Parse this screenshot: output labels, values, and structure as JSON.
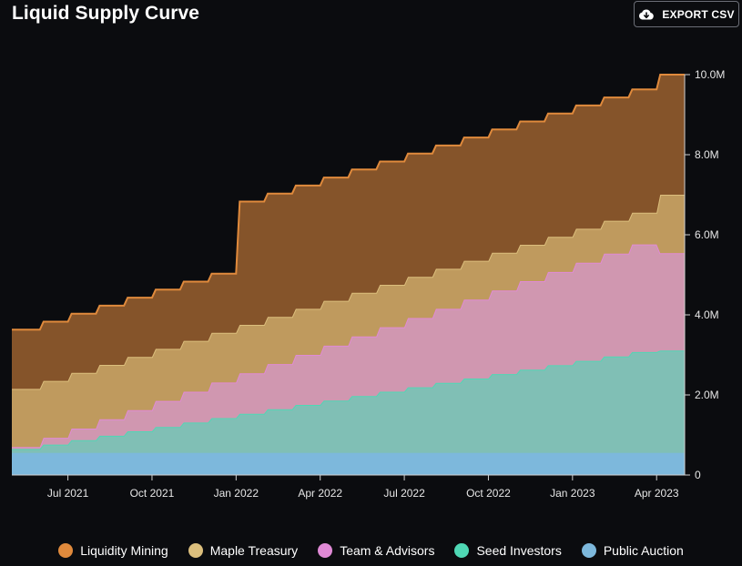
{
  "header": {
    "title": "Liquid Supply Curve",
    "export_label": "EXPORT CSV",
    "export_icon": "cloud-download-icon"
  },
  "chart_data": {
    "type": "area",
    "stacked": true,
    "title": "Liquid Supply Curve",
    "x_start": "2021-05",
    "x_end": "2023-04",
    "x_ticks": [
      "Jul 2021",
      "Oct 2021",
      "Jan 2022",
      "Apr 2022",
      "Jul 2022",
      "Oct 2022",
      "Jan 2023",
      "Apr 2023"
    ],
    "y_ticks": [
      "0",
      "2.0M",
      "4.0M",
      "6.0M",
      "8.0M",
      "10.0M"
    ],
    "ylim": [
      0,
      10000000
    ],
    "y_axis_side": "right",
    "grid": false,
    "legend_position": "bottom",
    "x": [
      "2021-05",
      "2021-06",
      "2021-07",
      "2021-08",
      "2021-09",
      "2021-10",
      "2021-11",
      "2021-12",
      "2022-01",
      "2022-02",
      "2022-03",
      "2022-04",
      "2022-05",
      "2022-06",
      "2022-07",
      "2022-08",
      "2022-09",
      "2022-10",
      "2022-11",
      "2022-12",
      "2023-01",
      "2023-02",
      "2023-03",
      "2023-04"
    ],
    "series": [
      {
        "name": "Public Auction",
        "color": "#7db8dc",
        "fill": "#7db8dc",
        "values": [
          550000,
          550000,
          550000,
          550000,
          550000,
          550000,
          550000,
          550000,
          550000,
          550000,
          550000,
          550000,
          550000,
          550000,
          550000,
          550000,
          550000,
          550000,
          550000,
          550000,
          550000,
          550000,
          550000,
          550000
        ]
      },
      {
        "name": "Seed Investors",
        "color": "#4fd8b5",
        "fill": "#80bfb5",
        "values": [
          100000,
          210000,
          320000,
          430000,
          540000,
          650000,
          760000,
          870000,
          980000,
          1090000,
          1200000,
          1310000,
          1420000,
          1530000,
          1640000,
          1750000,
          1860000,
          1970000,
          2080000,
          2190000,
          2300000,
          2410000,
          2520000,
          2560000
        ]
      },
      {
        "name": "Team & Advisors",
        "color": "#e08ad6",
        "fill": "#d097b0",
        "values": [
          50000,
          170000,
          290000,
          410000,
          530000,
          650000,
          770000,
          890000,
          1010000,
          1130000,
          1250000,
          1370000,
          1490000,
          1610000,
          1730000,
          1850000,
          1970000,
          2090000,
          2210000,
          2330000,
          2450000,
          2570000,
          2690000,
          2430000
        ]
      },
      {
        "name": "Maple Treasury",
        "color": "#dcbf7d",
        "fill": "#bf9a5e",
        "values": [
          1450000,
          1420000,
          1390000,
          1360000,
          1330000,
          1300000,
          1270000,
          1240000,
          1210000,
          1180000,
          1150000,
          1120000,
          1090000,
          1060000,
          1030000,
          1000000,
          970000,
          940000,
          910000,
          880000,
          850000,
          820000,
          790000,
          1460000
        ]
      },
      {
        "name": "Liquidity Mining",
        "color": "#e08a3c",
        "fill": "#85542a",
        "values": [
          1480000,
          1480000,
          1480000,
          1480000,
          1480000,
          1480000,
          1480000,
          1480000,
          3080000,
          3080000,
          3080000,
          3080000,
          3080000,
          3080000,
          3080000,
          3080000,
          3080000,
          3080000,
          3080000,
          3080000,
          3080000,
          3080000,
          3080000,
          3000000
        ]
      }
    ]
  }
}
